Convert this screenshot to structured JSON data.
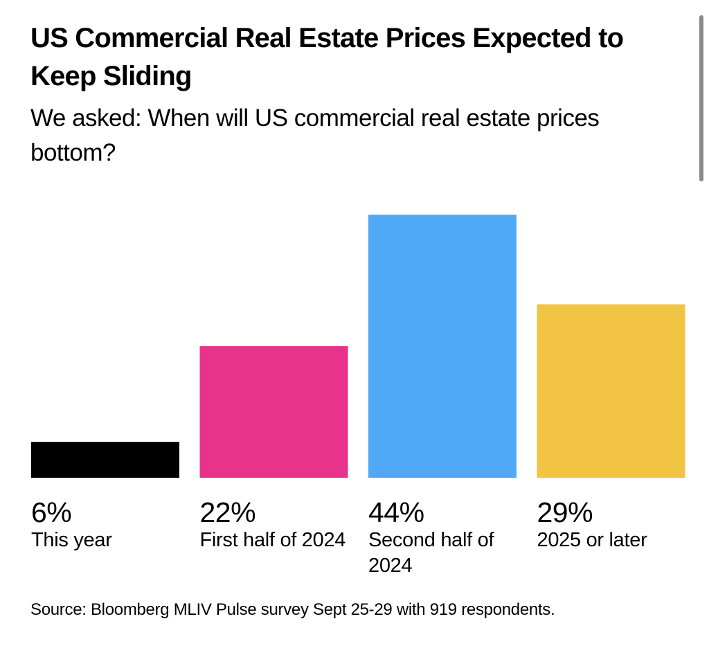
{
  "header": {
    "title": "US Commercial Real Estate Prices Expected to Keep Sliding",
    "subtitle": "We asked: When will US commercial real estate prices bottom?"
  },
  "footer": {
    "source": "Source: Bloomberg MLIV Pulse survey Sept 25-29 with 919 respondents."
  },
  "chart_data": {
    "type": "bar",
    "title": "US Commercial Real Estate Prices Expected to Keep Sliding",
    "subtitle": "We asked: When will US commercial real estate prices bottom?",
    "xlabel": "",
    "ylabel": "",
    "categories": [
      "This year",
      "First half of 2024",
      "Second half of 2024",
      "2025 or later"
    ],
    "values": [
      6,
      22,
      44,
      29
    ],
    "value_labels": [
      "6%",
      "22%",
      "44%",
      "29%"
    ],
    "colors": [
      "#000000",
      "#E8338A",
      "#4FA9F7",
      "#F2C444"
    ],
    "ylim": [
      0,
      44
    ],
    "grid": false,
    "legend": "none",
    "unit": "%",
    "source": "Source: Bloomberg MLIV Pulse survey Sept 25-29 with 919 respondents."
  }
}
